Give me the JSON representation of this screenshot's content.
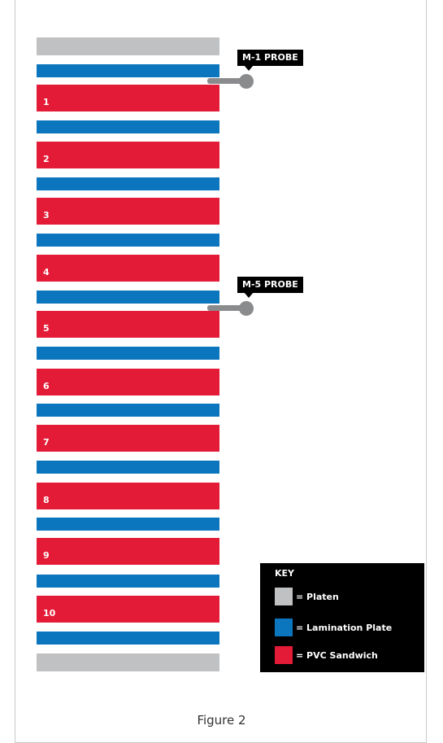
{
  "stack": {
    "sandwich_numbers": [
      "1",
      "2",
      "3",
      "4",
      "5",
      "6",
      "7",
      "8",
      "9",
      "10"
    ]
  },
  "probes": [
    {
      "label": "M-1 PROBE"
    },
    {
      "label": "M-5 PROBE"
    }
  ],
  "key": {
    "title": "KEY",
    "items": [
      {
        "label": "= Platen",
        "color": "#c0c1c3"
      },
      {
        "label": "= Lamination Plate",
        "color": "#0b75bd"
      },
      {
        "label": "= PVC Sandwich",
        "color": "#e31b37"
      }
    ]
  },
  "caption": "Figure 2",
  "colors": {
    "platen": "#c0c1c3",
    "lamination_plate": "#0b75bd",
    "pvc_sandwich": "#e31b37",
    "probe": "#8a8b8d"
  }
}
